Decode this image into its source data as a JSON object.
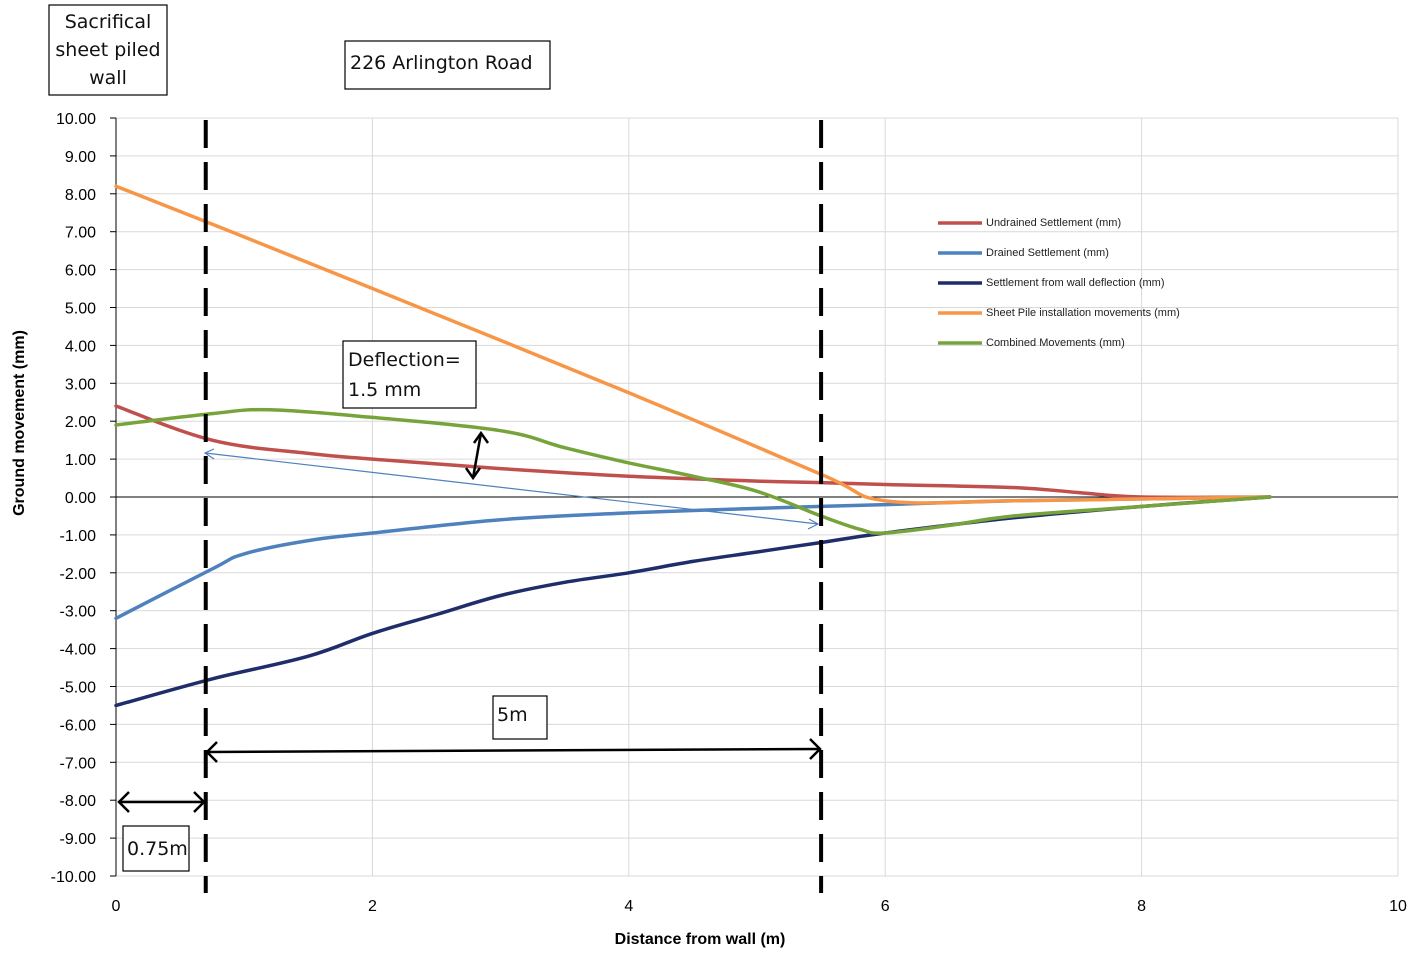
{
  "chart_data": {
    "type": "line",
    "title": "",
    "xlabel": "Distance from wall (m)",
    "ylabel": "Ground movement (mm)",
    "xlim": [
      0,
      10
    ],
    "ylim": [
      -10,
      10
    ],
    "xticks": [
      0,
      2,
      4,
      6,
      8,
      10
    ],
    "yticks": [
      10,
      9,
      8,
      7,
      6,
      5,
      4,
      3,
      2,
      1,
      0,
      -1,
      -2,
      -3,
      -4,
      -5,
      -6,
      -7,
      -8,
      -9,
      -10
    ],
    "yticks_labels": [
      "10.00",
      "9.00",
      "8.00",
      "7.00",
      "6.00",
      "5.00",
      "4.00",
      "3.00",
      "2.00",
      "1.00",
      "0.00",
      "-1.00",
      "-2.00",
      "-3.00",
      "-4.00",
      "-5.00",
      "-6.00",
      "-7.00",
      "-8.00",
      "-9.00",
      "-10.00"
    ],
    "grid": true,
    "legend_position": "right",
    "series": [
      {
        "name": "Undrained Settlement (mm)",
        "color": "#c0504d",
        "points": [
          [
            0,
            2.4
          ],
          [
            0.75,
            1.5
          ],
          [
            1.5,
            1.15
          ],
          [
            2,
            1.0
          ],
          [
            3,
            0.75
          ],
          [
            4,
            0.55
          ],
          [
            5,
            0.42
          ],
          [
            5.5,
            0.38
          ],
          [
            6,
            0.33
          ],
          [
            7,
            0.25
          ],
          [
            7.5,
            0.12
          ],
          [
            8,
            0.0
          ],
          [
            9,
            0.0
          ]
        ]
      },
      {
        "name": "Drained Settlement (mm)",
        "color": "#4f81bd",
        "points": [
          [
            0,
            -3.2
          ],
          [
            0.75,
            -1.9
          ],
          [
            1,
            -1.5
          ],
          [
            1.5,
            -1.15
          ],
          [
            2,
            -0.95
          ],
          [
            3,
            -0.6
          ],
          [
            4,
            -0.42
          ],
          [
            5,
            -0.3
          ],
          [
            6,
            -0.2
          ],
          [
            7,
            -0.1
          ],
          [
            8,
            -0.05
          ],
          [
            9,
            0.0
          ]
        ]
      },
      {
        "name": "Settlement from wall deflection (mm)",
        "color": "#1f2d6b",
        "points": [
          [
            0,
            -5.5
          ],
          [
            0.75,
            -4.8
          ],
          [
            1.5,
            -4.2
          ],
          [
            2,
            -3.6
          ],
          [
            2.5,
            -3.1
          ],
          [
            3,
            -2.6
          ],
          [
            3.5,
            -2.25
          ],
          [
            4,
            -2.0
          ],
          [
            4.5,
            -1.7
          ],
          [
            5,
            -1.45
          ],
          [
            5.5,
            -1.2
          ],
          [
            6,
            -0.95
          ],
          [
            7,
            -0.55
          ],
          [
            8,
            -0.25
          ],
          [
            9,
            0.0
          ]
        ]
      },
      {
        "name": "Sheet Pile installation movements (mm)",
        "color": "#f79646",
        "points": [
          [
            0,
            8.2
          ],
          [
            0.75,
            7.2
          ],
          [
            2,
            5.5
          ],
          [
            4,
            2.75
          ],
          [
            5.5,
            0.6
          ],
          [
            6,
            -0.1
          ],
          [
            7,
            -0.1
          ],
          [
            8,
            -0.05
          ],
          [
            9,
            0.0
          ]
        ]
      },
      {
        "name": "Combined Movements (mm)",
        "color": "#77a33b",
        "points": [
          [
            0,
            1.9
          ],
          [
            0.75,
            2.2
          ],
          [
            1.2,
            2.3
          ],
          [
            2,
            2.1
          ],
          [
            3,
            1.75
          ],
          [
            3.5,
            1.3
          ],
          [
            4,
            0.9
          ],
          [
            4.5,
            0.55
          ],
          [
            5,
            0.15
          ],
          [
            5.5,
            -0.5
          ],
          [
            5.8,
            -0.85
          ],
          [
            6,
            -0.95
          ],
          [
            6.5,
            -0.75
          ],
          [
            7,
            -0.5
          ],
          [
            8,
            -0.25
          ],
          [
            9,
            0.0
          ]
        ]
      }
    ],
    "annotations": {
      "wall_label": [
        "Sacrifical",
        "sheet piled",
        "wall"
      ],
      "road_label": "226 Arlington Road",
      "deflection_label": [
        "Deflection=",
        "1.5 mm"
      ],
      "distance_5m": "5m",
      "distance_075m": "0.75m",
      "vertical_lines_x": [
        0.7,
        5.5
      ]
    }
  }
}
